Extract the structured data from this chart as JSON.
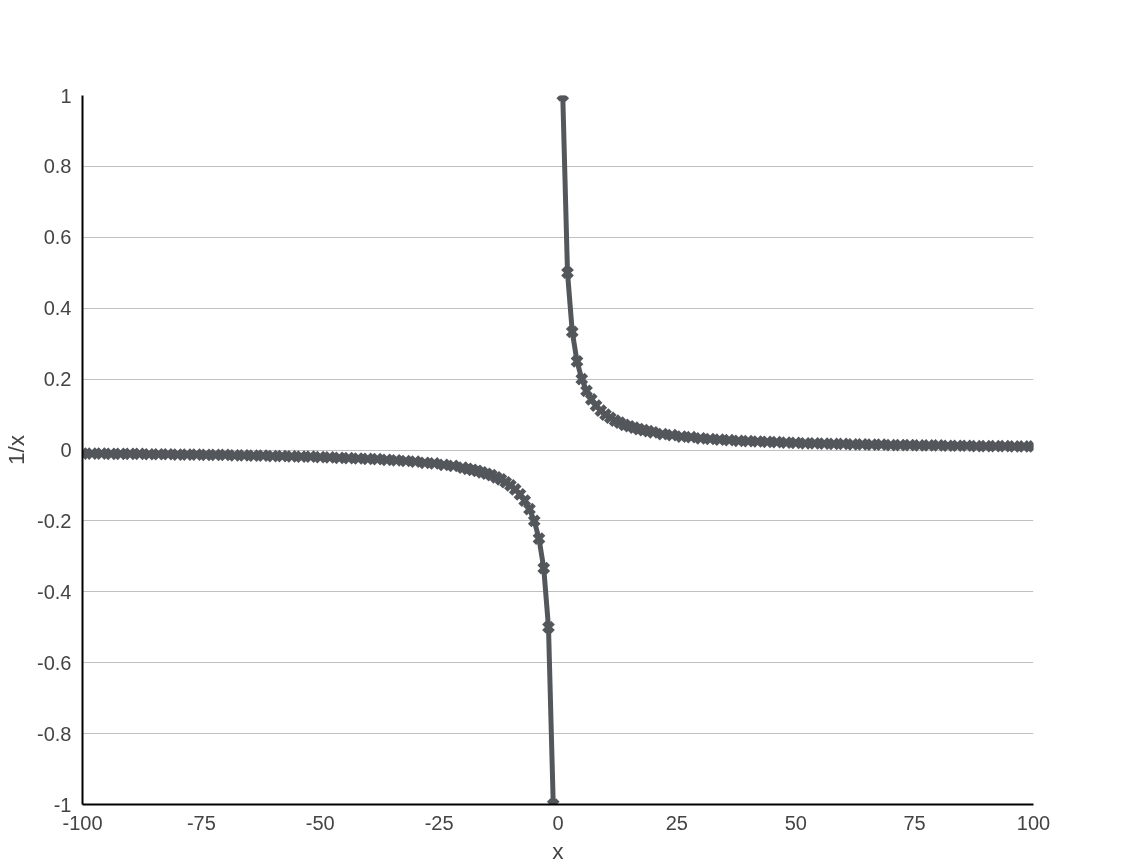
{
  "chart_data": {
    "type": "line",
    "xlabel": "x",
    "ylabel": "1/x",
    "x": [
      -100,
      -98,
      -96,
      -94,
      -92,
      -90,
      -88,
      -86,
      -84,
      -82,
      -80,
      -78,
      -76,
      -74,
      -72,
      -70,
      -68,
      -66,
      -64,
      -62,
      -60,
      -58,
      -56,
      -54,
      -52,
      -50,
      -48,
      -46,
      -44,
      -42,
      -40,
      -38,
      -36,
      -34,
      -32,
      -30,
      -28,
      -26,
      -24,
      -22,
      -20,
      -19,
      -18,
      -17,
      -16,
      -15,
      -14,
      -13,
      -12,
      -11,
      -10,
      -9,
      -8,
      -7,
      -6,
      -5,
      -4,
      -3,
      -2,
      -1,
      0,
      1,
      2,
      3,
      4,
      5,
      6,
      7,
      8,
      9,
      10,
      11,
      12,
      13,
      14,
      15,
      16,
      17,
      18,
      19,
      20,
      22,
      24,
      26,
      28,
      30,
      32,
      34,
      36,
      38,
      40,
      42,
      44,
      46,
      48,
      50,
      52,
      54,
      56,
      58,
      60,
      62,
      64,
      66,
      68,
      70,
      72,
      74,
      76,
      78,
      80,
      82,
      84,
      86,
      88,
      90,
      92,
      94,
      96,
      98,
      100
    ],
    "series": [
      {
        "color": "#53575c",
        "values": [
          -0.01,
          -0.01,
          -0.01,
          -0.011,
          -0.011,
          -0.011,
          -0.011,
          -0.012,
          -0.012,
          -0.012,
          -0.013,
          -0.013,
          -0.013,
          -0.014,
          -0.014,
          -0.014,
          -0.015,
          -0.015,
          -0.016,
          -0.016,
          -0.017,
          -0.017,
          -0.018,
          -0.019,
          -0.019,
          -0.02,
          -0.021,
          -0.022,
          -0.023,
          -0.024,
          -0.025,
          -0.026,
          -0.028,
          -0.029,
          -0.031,
          -0.033,
          -0.036,
          -0.038,
          -0.042,
          -0.045,
          -0.05,
          -0.053,
          -0.056,
          -0.059,
          -0.063,
          -0.067,
          -0.071,
          -0.077,
          -0.083,
          -0.091,
          -0.1,
          -0.111,
          -0.125,
          -0.143,
          -0.167,
          -0.2,
          -0.25,
          -0.333,
          -0.5,
          -1,
          null,
          1,
          0.5,
          0.333,
          0.25,
          0.2,
          0.167,
          0.143,
          0.125,
          0.111,
          0.1,
          0.091,
          0.083,
          0.077,
          0.071,
          0.067,
          0.063,
          0.059,
          0.056,
          0.053,
          0.05,
          0.045,
          0.042,
          0.038,
          0.036,
          0.033,
          0.031,
          0.029,
          0.028,
          0.026,
          0.025,
          0.024,
          0.023,
          0.022,
          0.021,
          0.02,
          0.019,
          0.019,
          0.018,
          0.017,
          0.017,
          0.016,
          0.016,
          0.015,
          0.015,
          0.014,
          0.014,
          0.014,
          0.013,
          0.013,
          0.013,
          0.012,
          0.012,
          0.012,
          0.011,
          0.011,
          0.011,
          0.011,
          0.01,
          0.01,
          0.01
        ]
      }
    ],
    "xlim": [
      -100,
      100
    ],
    "xticks": [
      -100,
      -75,
      -50,
      -25,
      0,
      25,
      50,
      75,
      100
    ],
    "ylim": [
      -1,
      1
    ],
    "yticks": [
      -1,
      -0.8,
      -0.6,
      -0.4,
      -0.2,
      0,
      0.2,
      0.4,
      0.6,
      0.8,
      1
    ],
    "grid": "y",
    "marker": "cross",
    "line_style": "solid"
  }
}
